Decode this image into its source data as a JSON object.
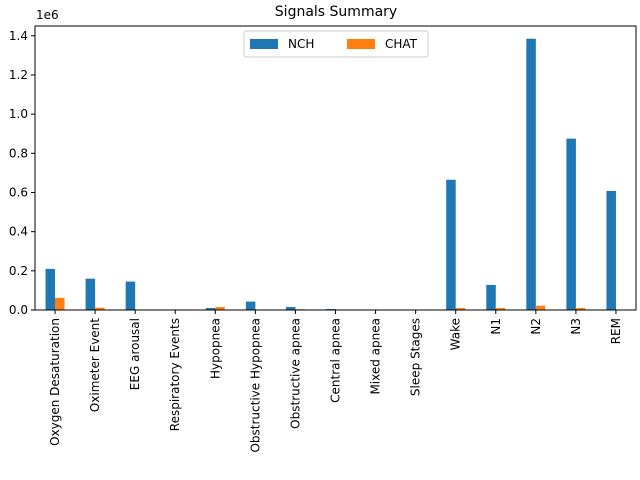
{
  "chart_data": {
    "type": "bar",
    "title": "Signals Summary",
    "xlabel": "",
    "ylabel": "",
    "y_scale_label": "1e6",
    "ylim": [
      0,
      1.45
    ],
    "y_ticks": [
      0.0,
      0.2,
      0.4,
      0.6,
      0.8,
      1.0,
      1.2,
      1.4
    ],
    "y_tick_labels": [
      "0.0",
      "0.2",
      "0.4",
      "0.6",
      "0.8",
      "1.0",
      "1.2",
      "1.4"
    ],
    "categories": [
      "Oxygen Desaturation",
      "Oximeter Event",
      "EEG arousal",
      "Respiratory Events",
      "Hypopnea",
      "Obstructive Hypopnea",
      "Obstructive apnea",
      "Central apnea",
      "Mixed apnea",
      "Sleep Stages",
      "Wake",
      "N1",
      "N2",
      "N3",
      "REM"
    ],
    "series": [
      {
        "name": "NCH",
        "color": "#1f77b4",
        "values": [
          0.21,
          0.16,
          0.145,
          0.0,
          0.01,
          0.043,
          0.015,
          0.005,
          0.0,
          0.0,
          0.665,
          0.128,
          1.385,
          0.875,
          0.608
        ]
      },
      {
        "name": "CHAT",
        "color": "#ff7f0e",
        "values": [
          0.062,
          0.012,
          0.0,
          0.0,
          0.015,
          0.0,
          0.004,
          0.0,
          0.0,
          0.0,
          0.01,
          0.01,
          0.022,
          0.01,
          0.0
        ]
      }
    ],
    "legend": {
      "position": "top-center",
      "ncol": 2
    }
  }
}
